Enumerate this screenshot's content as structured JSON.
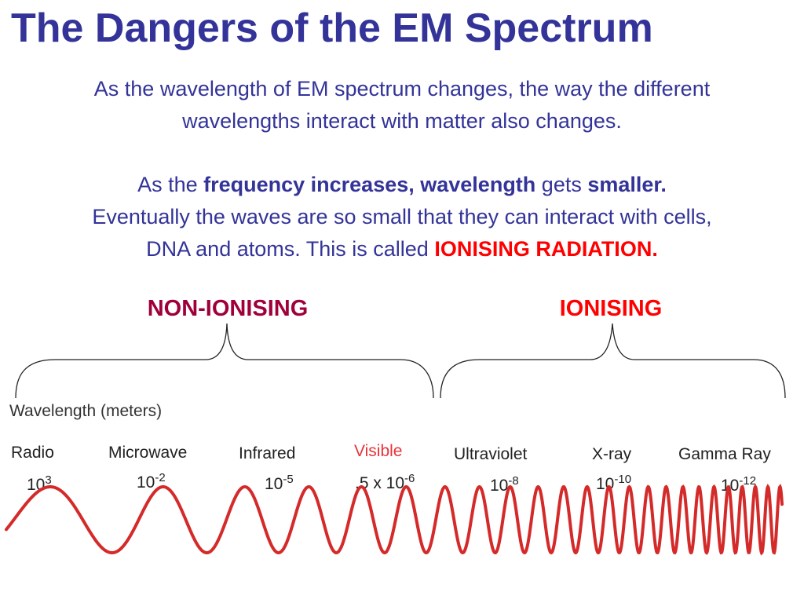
{
  "title": "The Dangers of the EM Spectrum",
  "intro": {
    "line1": "As the wavelength of EM spectrum changes, the way the different",
    "line2": "wavelengths interact with matter also changes."
  },
  "explanation": {
    "part1": "As the ",
    "bold1": "frequency increases, wavelength",
    "part2": " gets ",
    "bold2": "smaller.",
    "line2": "Eventually the waves are so small that they can interact with cells,",
    "part3": "DNA and atoms. This is called ",
    "red": "IONISING RADIATION",
    "end": "."
  },
  "categories": {
    "non_ionising": "NON-IONISING",
    "ionising": "IONISING"
  },
  "wavelength_label": "Wavelength (meters)",
  "bands": [
    {
      "name": "Radio",
      "base": "10",
      "exp": "3"
    },
    {
      "name": "Microwave",
      "base": "10",
      "exp": "-2"
    },
    {
      "name": "Infrared",
      "base": "10",
      "exp": "-5"
    },
    {
      "name": "Visible",
      "base": ".5 x 10",
      "exp": "-6"
    },
    {
      "name": "Ultraviolet",
      "base": "10",
      "exp": "-8"
    },
    {
      "name": "X-ray",
      "base": "10",
      "exp": "-10"
    },
    {
      "name": "Gamma Ray",
      "base": "10",
      "exp": "-12"
    }
  ],
  "colors": {
    "title": "#333399",
    "ionising": "#ff0000",
    "non_ionising": "#a0003a",
    "wave": "#d42a2a"
  }
}
